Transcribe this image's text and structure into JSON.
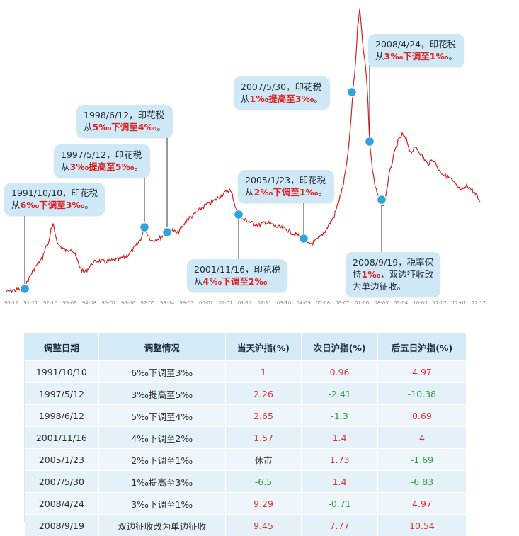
{
  "chart_data": {
    "type": "line",
    "title": "",
    "xlabel": "",
    "ylabel": "",
    "x_tick_labels": [
      "90-12",
      "91-11",
      "92-10",
      "93-09",
      "94-08",
      "95-07",
      "96-06",
      "97-05",
      "98-04",
      "99-03",
      "00-02",
      "01-01",
      "01-12",
      "02-11",
      "03-10",
      "04-09",
      "05-08",
      "06-07",
      "07-06",
      "08-05",
      "09-04",
      "10-03",
      "11-02",
      "12-01",
      "12-12"
    ],
    "series_color": "#d42020",
    "events": [
      {
        "date": "1991/10/10",
        "line1": "1991/10/10，印花税",
        "line2_prefix": "从",
        "line2_red": "6‰下调至3‰",
        "line2_suffix": "。"
      },
      {
        "date": "1997/5/12",
        "line1": "1997/5/12，印花税",
        "line2_prefix": "从",
        "line2_red": "3‰提高至5‰",
        "line2_suffix": "。"
      },
      {
        "date": "1998/6/12",
        "line1": "1998/6/12，印花税",
        "line2_prefix": "从",
        "line2_red": "5‰下调至4‰",
        "line2_suffix": "。"
      },
      {
        "date": "2001/11/16",
        "line1": "2001/11/16，印花税",
        "line2_prefix": "从",
        "line2_red": "4‰下调至2‰",
        "line2_suffix": "。"
      },
      {
        "date": "2005/1/23",
        "line1": "2005/1/23，印花税",
        "line2_prefix": "从",
        "line2_red": "2‰下调至1‰",
        "line2_suffix": "。"
      },
      {
        "date": "2007/5/30",
        "line1": "2007/5/30，印花税",
        "line2_prefix": "从",
        "line2_red": "1‰提高至3‰",
        "line2_suffix": "。"
      },
      {
        "date": "2008/4/24",
        "line1": "2008/4/24，印花税",
        "line2_prefix": "从",
        "line2_red": "3‰下调至1‰",
        "line2_suffix": "。"
      },
      {
        "date": "2008/9/19",
        "line1": "2008/9/19，税率保",
        "line2_prefix": "持",
        "line2_red": "1‰",
        "line2_suffix": "，双边征收改",
        "line3": "为单边征收。"
      }
    ]
  },
  "table": {
    "headers": [
      "调整日期",
      "调整情况",
      "当天沪指(%)",
      "次日沪指(%)",
      "后五日沪指(%)"
    ],
    "rows": [
      {
        "date": "1991/10/10",
        "change": "6‰下调至3‰",
        "day0": "1",
        "day1": "0.96",
        "day5": "4.97"
      },
      {
        "date": "1997/5/12",
        "change": "3‰提高至5‰",
        "day0": "2.26",
        "day1": "-2.41",
        "day5": "-10.38"
      },
      {
        "date": "1998/6/12",
        "change": "5‰下调至4‰",
        "day0": "2.65",
        "day1": "-1.3",
        "day5": "0.69"
      },
      {
        "date": "2001/11/16",
        "change": "4‰下调至2‰",
        "day0": "1.57",
        "day1": "1.4",
        "day5": "4"
      },
      {
        "date": "2005/1/23",
        "change": "2‰下调至1‰",
        "day0": "休市",
        "day1": "1.73",
        "day5": "-1.69"
      },
      {
        "date": "2007/5/30",
        "change": "1‰提高至3‰",
        "day0": "-6.5",
        "day1": "1.4",
        "day5": "-6.83"
      },
      {
        "date": "2008/4/24",
        "change": "3‰下调至1‰",
        "day0": "9.29",
        "day1": "-0.71",
        "day5": "4.97"
      },
      {
        "date": "2008/9/19",
        "change": "双边征收改为单边征收",
        "day0": "9.45",
        "day1": "7.77",
        "day5": "10.54"
      }
    ]
  }
}
